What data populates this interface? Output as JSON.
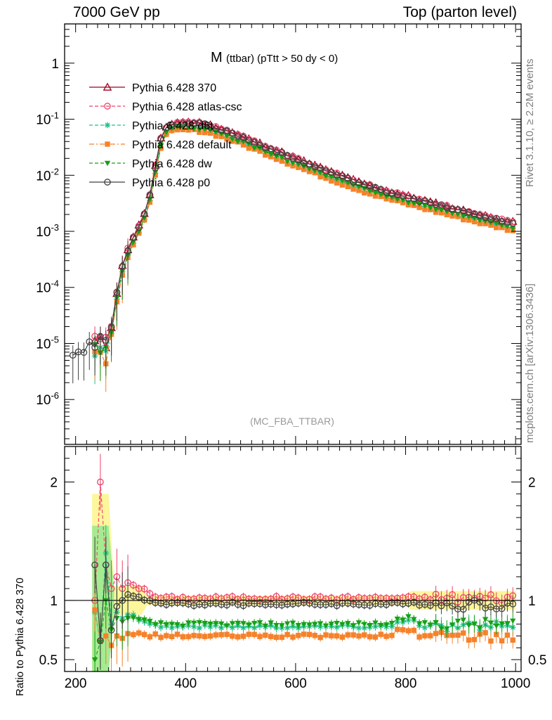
{
  "header": {
    "left": "7000 GeV pp",
    "right": "Top (parton level)"
  },
  "side_labels": {
    "rivet": "Rivet 3.1.10, ≥ 2.2M events",
    "mcplots": "mcplots.cern.ch [arXiv:1306.3436]"
  },
  "chart_data": [
    {
      "type": "line",
      "title": "M",
      "title_suffix": "(ttbar) (pTtt > 50 dy < 0)",
      "watermark": "(MC_FBA_TTBAR)",
      "xlabel": "",
      "ylabel": "",
      "xlim": [
        180,
        1010
      ],
      "ylim": [
        1.5e-07,
        5
      ],
      "log_y": true,
      "y_tick_labels": [
        "1",
        "10^-1",
        "10^-2",
        "10^-3",
        "10^-4",
        "10^-5",
        "10^-6"
      ],
      "x_tick_labels": [
        "200",
        "400",
        "600",
        "800",
        "1000"
      ],
      "legend_position": "top-left",
      "reference_curve": {
        "x": [
          260,
          270,
          280,
          290,
          300,
          310,
          320,
          330,
          340,
          350,
          360,
          370,
          380,
          390,
          400,
          420,
          440,
          460,
          480,
          500,
          550,
          600,
          650,
          700,
          750,
          800,
          850,
          900,
          950,
          1000
        ],
        "y": [
          1e-05,
          4e-05,
          0.00016,
          0.00036,
          0.00065,
          0.001,
          0.0016,
          0.0028,
          0.007,
          0.03,
          0.065,
          0.08,
          0.086,
          0.088,
          0.089,
          0.087,
          0.08,
          0.07,
          0.06,
          0.05,
          0.032,
          0.02,
          0.013,
          0.0085,
          0.0058,
          0.0043,
          0.0032,
          0.0024,
          0.0018,
          0.0014
        ]
      },
      "series": [
        {
          "name": "Pythia 6.428 370",
          "color": "#a00020",
          "marker": "triangle-open",
          "dash": "solid",
          "scale": 1.0
        },
        {
          "name": "Pythia 6.428 atlas-csc",
          "color": "#f0406a",
          "marker": "circle-open",
          "dash": "dashed",
          "scale": 1.0
        },
        {
          "name": "Pythia 6.428 d6t",
          "color": "#1fc08a",
          "marker": "star",
          "dash": "dashed",
          "scale": 0.78
        },
        {
          "name": "Pythia 6.428 default",
          "color": "#f5822a",
          "marker": "square-filled",
          "dash": "dashdot",
          "scale": 0.72
        },
        {
          "name": "Pythia 6.428 dw",
          "color": "#16a016",
          "marker": "triangle-down-filled",
          "dash": "dashed",
          "scale": 0.8
        },
        {
          "name": "Pythia 6.428 p0",
          "color": "#404040",
          "marker": "circle-open",
          "dash": "solid",
          "scale": 0.97
        }
      ]
    },
    {
      "type": "line",
      "title": "",
      "xlabel": "",
      "ylabel": "Ratio to Pythia 6.428 370",
      "xlim": [
        180,
        1010
      ],
      "ylim": [
        0.4,
        2.3
      ],
      "y_tick_labels": [
        "2",
        "1",
        "0.5"
      ],
      "x_tick_labels": [
        "200",
        "400",
        "600",
        "800",
        "1000"
      ],
      "reference_line": 1.0,
      "series_ratio": [
        {
          "name": "Pythia 6.428 atlas-csc",
          "early": [
            1.0,
            2.0,
            1.3,
            1.1,
            1.2,
            1.1,
            1.15
          ],
          "plateau": 1.02
        },
        {
          "name": "Pythia 6.428 d6t",
          "early": [
            0.9,
            0.65,
            1.4,
            0.8,
            0.9,
            0.85,
            0.88
          ],
          "plateau": 0.78
        },
        {
          "name": "Pythia 6.428 default",
          "early": [
            0.92,
            0.66,
            0.7,
            0.62,
            0.7,
            0.68,
            0.72
          ],
          "plateau": 0.7
        },
        {
          "name": "Pythia 6.428 dw",
          "early": [
            0.5,
            0.65,
            1.0,
            0.75,
            0.85,
            0.82,
            0.85
          ],
          "plateau": 0.8
        },
        {
          "name": "Pythia 6.428 p0",
          "early": [
            1.3,
            0.66,
            1.3,
            0.75,
            0.95,
            1.0,
            1.05
          ],
          "plateau": 0.97
        }
      ]
    }
  ]
}
